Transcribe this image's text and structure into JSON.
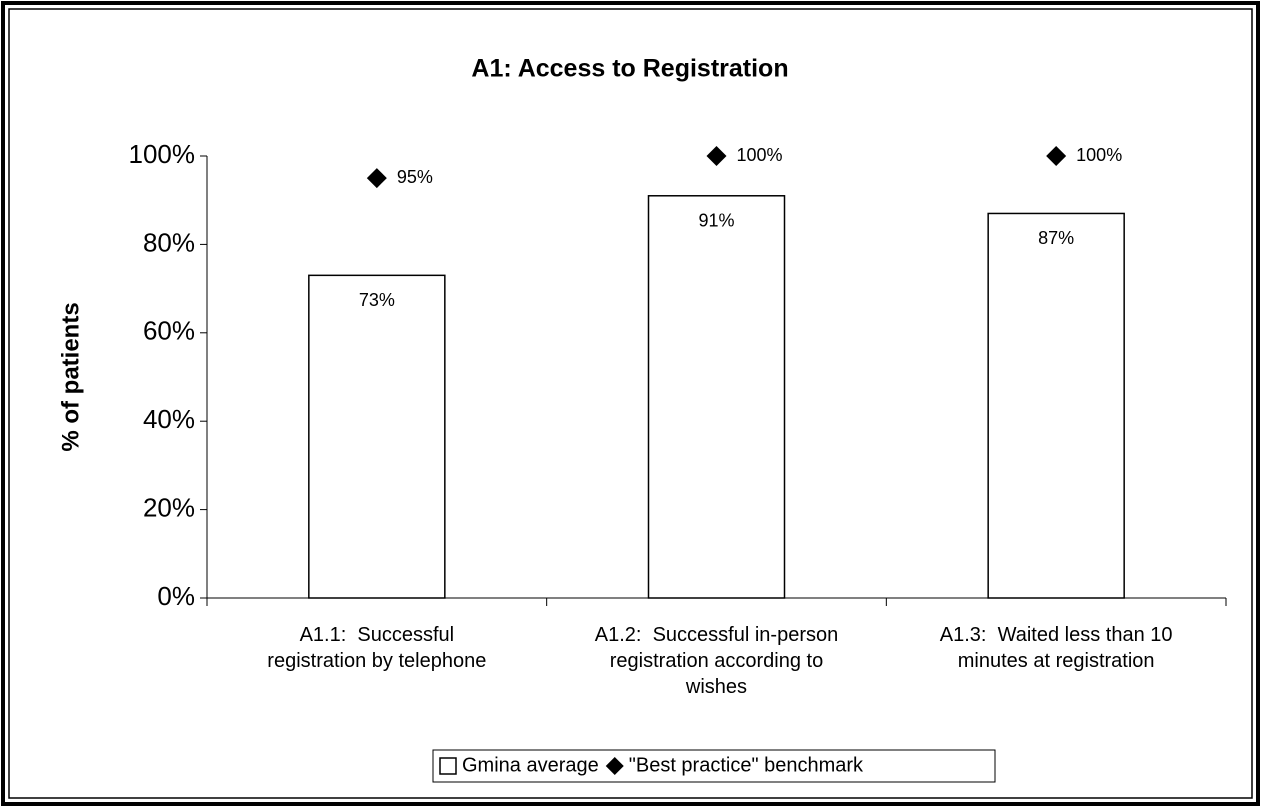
{
  "chart_data": {
    "type": "bar",
    "title": "A1:  Access to Registration",
    "y_label": "% of patients",
    "categories": [
      "A1.1:  Successful\nregistration by telephone",
      "A1.2:  Successful in-person\nregistration according to\nwishes",
      "A1.3:  Waited less than 10\nminutes at registration"
    ],
    "series": [
      {
        "name": "Gmina average",
        "type": "bar",
        "color": "#ffffff",
        "values": [
          73,
          91,
          87
        ],
        "value_labels": [
          "73%",
          "91%",
          "87%"
        ]
      },
      {
        "name": "\"Best practice\" benchmark",
        "type": "scatter",
        "color": "#000000",
        "values": [
          95,
          100,
          100
        ],
        "value_labels": [
          "95%",
          "100%",
          "100%"
        ]
      }
    ],
    "ylim": [
      0,
      100
    ],
    "yticks": [
      {
        "value": 0,
        "label": "0%"
      },
      {
        "value": 20,
        "label": "20%"
      },
      {
        "value": 40,
        "label": "40%"
      },
      {
        "value": 60,
        "label": "60%"
      },
      {
        "value": 80,
        "label": "80%"
      },
      {
        "value": 100,
        "label": "100%"
      }
    ],
    "grid": false,
    "legend": "bottom"
  }
}
